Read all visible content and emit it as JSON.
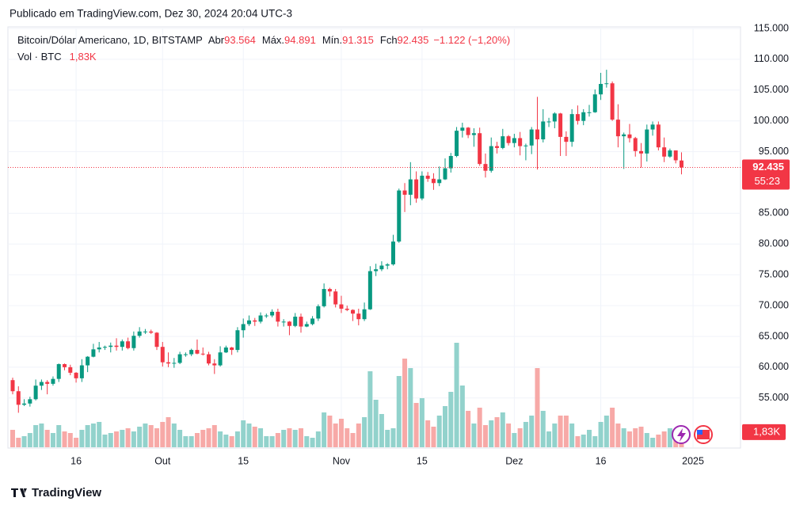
{
  "header": {
    "published": "Publicado em TradingView.com, Dez 30, 2024 20:04 UTC-3"
  },
  "chart_data": {
    "type": "candlestick",
    "symbol": "Bitcoin/Dólar Americano, 1D, BITSTAMP",
    "ohlc_legend": [
      {
        "label": "Abr",
        "value": "93.564"
      },
      {
        "label": "Máx.",
        "value": "94.891"
      },
      {
        "label": "Mín.",
        "value": "91.315"
      },
      {
        "label": "Fch",
        "value": "92.435"
      }
    ],
    "change": "−1.122 (−1,20%)",
    "volume_title": "Vol · BTC",
    "volume_label": "1,83K",
    "price_label": "92.435",
    "countdown": "55:23",
    "up_color": "#089981",
    "down_color": "#f23645",
    "up_volume_color": "#92d2cc",
    "down_volume_color": "#f7a9a7",
    "grid": true,
    "ylim": [
      47000,
      115000
    ],
    "yticks": [
      {
        "value": 55000,
        "label": "55.000"
      },
      {
        "value": 60000,
        "label": "60.000"
      },
      {
        "value": 65000,
        "label": "65.000"
      },
      {
        "value": 70000,
        "label": "70.000"
      },
      {
        "value": 75000,
        "label": "75.000"
      },
      {
        "value": 80000,
        "label": "80.000"
      },
      {
        "value": 85000,
        "label": "85.000"
      },
      {
        "value": 95000,
        "label": "95.000"
      },
      {
        "value": 100000,
        "label": "100.000"
      },
      {
        "value": 105000,
        "label": "105.000"
      },
      {
        "value": 110000,
        "label": "110.000"
      },
      {
        "value": 115000,
        "label": "115.000"
      }
    ],
    "xticks": [
      {
        "value": 11,
        "label": "16"
      },
      {
        "value": 26,
        "label": "Out"
      },
      {
        "value": 40,
        "label": "15"
      },
      {
        "value": 57,
        "label": "Nov"
      },
      {
        "value": 71,
        "label": "15"
      },
      {
        "value": 87,
        "label": "Dez"
      },
      {
        "value": 102,
        "label": "16"
      },
      {
        "value": 118,
        "label": "2025"
      }
    ],
    "candles": [
      [
        57900,
        58300,
        55600,
        56100
      ],
      [
        56100,
        56900,
        52600,
        53900
      ],
      [
        53900,
        54800,
        53700,
        54100
      ],
      [
        54100,
        55200,
        53600,
        54800
      ],
      [
        54800,
        58000,
        54600,
        57000
      ],
      [
        57000,
        58000,
        56300,
        57600
      ],
      [
        57600,
        57900,
        55600,
        57300
      ],
      [
        57300,
        58500,
        57000,
        58100
      ],
      [
        58100,
        60600,
        57600,
        60500
      ],
      [
        60500,
        60600,
        59500,
        60000
      ],
      [
        60000,
        60400,
        58700,
        59100
      ],
      [
        59100,
        59200,
        57500,
        58200
      ],
      [
        58200,
        61300,
        57600,
        60300
      ],
      [
        60300,
        61800,
        59200,
        61700
      ],
      [
        61700,
        63800,
        61600,
        62900
      ],
      [
        62900,
        64100,
        62400,
        63200
      ],
      [
        63200,
        63500,
        62800,
        63300
      ],
      [
        63300,
        64000,
        62400,
        63500
      ],
      [
        63500,
        64700,
        62700,
        63300
      ],
      [
        63300,
        64500,
        62700,
        64200
      ],
      [
        64200,
        64800,
        62900,
        63100
      ],
      [
        63100,
        65800,
        62700,
        65100
      ],
      [
        65100,
        66500,
        64800,
        65800
      ],
      [
        65800,
        66200,
        65400,
        65800
      ],
      [
        65800,
        66100,
        65400,
        65600
      ],
      [
        65600,
        65700,
        62800,
        63300
      ],
      [
        63300,
        64100,
        60100,
        60800
      ],
      [
        60800,
        62400,
        60000,
        60600
      ],
      [
        60600,
        61500,
        59900,
        60700
      ],
      [
        60700,
        62500,
        60500,
        62100
      ],
      [
        62100,
        62400,
        61700,
        62100
      ],
      [
        62100,
        63000,
        61800,
        62800
      ],
      [
        62800,
        64500,
        62100,
        62200
      ],
      [
        62200,
        63200,
        61900,
        62100
      ],
      [
        62100,
        62500,
        60300,
        60600
      ],
      [
        60600,
        61300,
        58900,
        60300
      ],
      [
        60300,
        63400,
        60100,
        62400
      ],
      [
        62400,
        63500,
        62300,
        63200
      ],
      [
        63200,
        63300,
        62000,
        62800
      ],
      [
        62800,
        66500,
        62400,
        66000
      ],
      [
        66000,
        67900,
        64800,
        67000
      ],
      [
        67000,
        68400,
        66700,
        67600
      ],
      [
        67600,
        68000,
        66700,
        67400
      ],
      [
        67400,
        68900,
        67100,
        68400
      ],
      [
        68400,
        68700,
        68000,
        68400
      ],
      [
        68400,
        69400,
        68100,
        69000
      ],
      [
        69000,
        69500,
        66600,
        67400
      ],
      [
        67400,
        67800,
        66600,
        67400
      ],
      [
        67400,
        67500,
        65200,
        66700
      ],
      [
        66700,
        68800,
        66500,
        68200
      ],
      [
        68200,
        68700,
        65600,
        66600
      ],
      [
        66600,
        67400,
        66500,
        67000
      ],
      [
        67000,
        68300,
        66800,
        67900
      ],
      [
        67900,
        70200,
        67500,
        69900
      ],
      [
        69900,
        73600,
        69700,
        72700
      ],
      [
        72700,
        72900,
        71500,
        72300
      ],
      [
        72300,
        72700,
        69700,
        70200
      ],
      [
        70200,
        71600,
        68800,
        69500
      ],
      [
        69500,
        70000,
        69100,
        69300
      ],
      [
        69300,
        69400,
        67500,
        68700
      ],
      [
        68700,
        69500,
        66800,
        67800
      ],
      [
        67800,
        70500,
        67500,
        69400
      ],
      [
        69400,
        76400,
        69300,
        75600
      ],
      [
        75600,
        76800,
        74800,
        75900
      ],
      [
        75900,
        77200,
        75600,
        76500
      ],
      [
        76500,
        76900,
        75900,
        76700
      ],
      [
        76700,
        81500,
        76500,
        80400
      ],
      [
        80400,
        89000,
        80200,
        88700
      ],
      [
        88700,
        89900,
        85200,
        88000
      ],
      [
        88000,
        93300,
        86300,
        90500
      ],
      [
        90500,
        91800,
        86700,
        87400
      ],
      [
        87400,
        91800,
        87100,
        91100
      ],
      [
        91100,
        91700,
        90100,
        90600
      ],
      [
        90600,
        91500,
        88800,
        89900
      ],
      [
        89900,
        92600,
        89400,
        90500
      ],
      [
        90500,
        93900,
        90400,
        92300
      ],
      [
        92300,
        94800,
        91600,
        94300
      ],
      [
        94300,
        99000,
        94100,
        98400
      ],
      [
        98400,
        99700,
        97300,
        98900
      ],
      [
        98900,
        99000,
        97200,
        97700
      ],
      [
        97700,
        98800,
        95800,
        98000
      ],
      [
        98000,
        98900,
        92700,
        93000
      ],
      [
        93000,
        94700,
        90800,
        91900
      ],
      [
        91900,
        97300,
        91600,
        95900
      ],
      [
        95900,
        96600,
        94700,
        95600
      ],
      [
        95600,
        98700,
        95400,
        97500
      ],
      [
        97500,
        97700,
        96000,
        96400
      ],
      [
        96400,
        97900,
        95700,
        97200
      ],
      [
        97200,
        98200,
        94400,
        95900
      ],
      [
        95900,
        96300,
        93600,
        96000
      ],
      [
        96000,
        99000,
        94600,
        98600
      ],
      [
        98600,
        103900,
        92100,
        97000
      ],
      [
        97000,
        101900,
        96500,
        99900
      ],
      [
        99900,
        100500,
        99000,
        99900
      ],
      [
        99900,
        101400,
        98800,
        101200
      ],
      [
        101200,
        101300,
        94300,
        97400
      ],
      [
        97400,
        98300,
        94300,
        96600
      ],
      [
        96600,
        101900,
        95800,
        101100
      ],
      [
        101100,
        102500,
        99400,
        100000
      ],
      [
        100000,
        101900,
        99300,
        101400
      ],
      [
        101400,
        102600,
        100700,
        101400
      ],
      [
        101400,
        105100,
        101300,
        104300
      ],
      [
        104300,
        107800,
        103400,
        106000
      ],
      [
        106000,
        108300,
        105400,
        106100
      ],
      [
        106100,
        106400,
        100000,
        100200
      ],
      [
        100200,
        102700,
        95700,
        97500
      ],
      [
        97500,
        98100,
        92200,
        97800
      ],
      [
        97800,
        99500,
        96500,
        97200
      ],
      [
        97200,
        97400,
        94200,
        95100
      ],
      [
        95100,
        96400,
        92400,
        94700
      ],
      [
        94700,
        99400,
        93400,
        98600
      ],
      [
        98600,
        99900,
        97600,
        99400
      ],
      [
        99400,
        99900,
        95200,
        95700
      ],
      [
        95700,
        97300,
        93300,
        94200
      ],
      [
        94200,
        95500,
        94000,
        95200
      ],
      [
        95200,
        95200,
        93100,
        93600
      ],
      [
        93564,
        94891,
        91315,
        92435
      ]
    ],
    "volumes": [
      3080,
      1680,
      1960,
      2520,
      3920,
      4200,
      3080,
      2520,
      3920,
      2800,
      2520,
      1680,
      3080,
      3920,
      4200,
      4480,
      2240,
      2520,
      2800,
      3080,
      3360,
      2800,
      3640,
      4200,
      3920,
      3360,
      4480,
      5320,
      4200,
      3080,
      1960,
      1960,
      2520,
      3080,
      3360,
      3920,
      2800,
      2240,
      1960,
      2800,
      4760,
      4200,
      3640,
      3360,
      1960,
      1960,
      2520,
      3080,
      3360,
      3080,
      3360,
      1960,
      1680,
      2800,
      6160,
      5600,
      4200,
      5040,
      3360,
      2520,
      4200,
      5320,
      13440,
      8400,
      5880,
      3080,
      3360,
      12600,
      15680,
      14000,
      7840,
      8680,
      4760,
      3640,
      5600,
      7280,
      9800,
      18480,
      10920,
      6440,
      4200,
      7000,
      3920,
      4760,
      5320,
      6160,
      4200,
      2520,
      3360,
      4480,
      5600,
      14000,
      6440,
      2800,
      4200,
      5600,
      5600,
      4200,
      1960,
      2240,
      3080,
      1960,
      4480,
      5600,
      7000,
      4200,
      3360,
      2800,
      3360,
      3640,
      2520,
      1680,
      2240,
      2800,
      3360,
      1960,
      1830
    ]
  },
  "footer": {
    "brand": "TradingView"
  }
}
